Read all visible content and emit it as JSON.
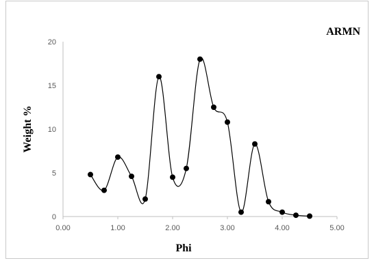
{
  "chart_data": {
    "type": "scatter",
    "title": "",
    "xlabel": "Phi",
    "ylabel": "Weight %",
    "series_label": "ARMN",
    "xlim": [
      0,
      5
    ],
    "ylim": [
      0,
      20
    ],
    "x_ticks": [
      "0.00",
      "1.00",
      "2.00",
      "3.00",
      "4.00",
      "5.00"
    ],
    "y_ticks": [
      "0",
      "5",
      "10",
      "15",
      "20"
    ],
    "line_style": "smoothed",
    "grid": false,
    "colors": {
      "line": "#000000",
      "marker": "#000000"
    },
    "series": [
      {
        "x": [
          0.5,
          0.75,
          1.0,
          1.25,
          1.5,
          1.75,
          2.0,
          2.25,
          2.5,
          2.75,
          3.0,
          3.25,
          3.5,
          3.75,
          4.0,
          4.25,
          4.5
        ],
        "y": [
          4.8,
          3.0,
          6.8,
          4.6,
          2.0,
          16.0,
          4.5,
          5.5,
          18.0,
          12.5,
          10.8,
          0.5,
          8.3,
          1.7,
          0.5,
          0.15,
          0.05
        ]
      }
    ]
  }
}
